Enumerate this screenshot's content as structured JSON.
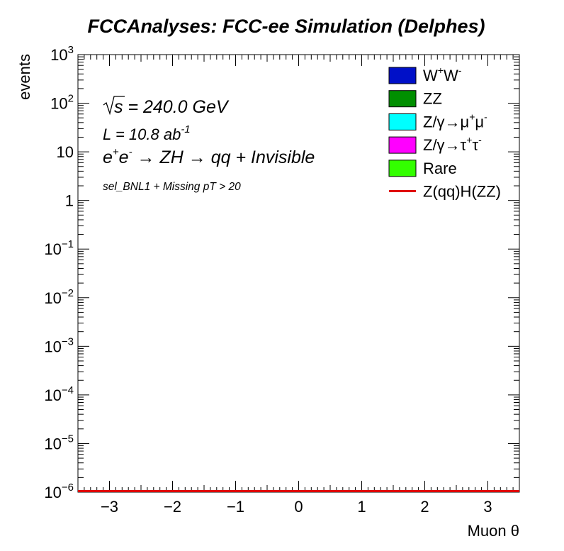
{
  "chart_data": {
    "type": "histogram",
    "title": "FCCAnalyses: FCC-ee Simulation (Delphes)",
    "xlabel": "Muon θ",
    "ylabel": "events",
    "xlim": [
      -3.5,
      3.5
    ],
    "ylim_log10": [
      -6,
      3
    ],
    "log_y": true,
    "x_ticks": [
      "−3",
      "−2",
      "−1",
      "0",
      "1",
      "2",
      "3"
    ],
    "x_tick_values": [
      -3,
      -2,
      -1,
      0,
      1,
      2,
      3
    ],
    "y_ticks": [
      {
        "exp": -6,
        "base": "10",
        "sup": "−6"
      },
      {
        "exp": -5,
        "base": "10",
        "sup": "−5"
      },
      {
        "exp": -4,
        "base": "10",
        "sup": "−4"
      },
      {
        "exp": -3,
        "base": "10",
        "sup": "−3"
      },
      {
        "exp": -2,
        "base": "10",
        "sup": "−2"
      },
      {
        "exp": -1,
        "base": "10",
        "sup": "−1"
      },
      {
        "exp": 0,
        "base": "1",
        "sup": ""
      },
      {
        "exp": 1,
        "base": "10",
        "sup": ""
      },
      {
        "exp": 2,
        "base": "10",
        "sup": "2"
      },
      {
        "exp": 3,
        "base": "10",
        "sup": "3"
      }
    ],
    "annotations": {
      "energy": {
        "sqrt": "s",
        "rest": "= 240.0 GeV"
      },
      "lumi": {
        "main": "L = 10.8 ab",
        "sup": "-1"
      },
      "process": {
        "e1": "e",
        "e1sup": "+",
        "e2": "e",
        "e2sup": "-",
        "arrow1": "→",
        "zh": "ZH",
        "arrow2": "→",
        "final": "qq + Invisible"
      },
      "selection": "sel_BNL1 + Missing pT > 20"
    },
    "legend": {
      "placement": "top-right",
      "entries": [
        {
          "kind": "box",
          "color": "#0010c8",
          "parts": [
            [
              "W",
              ""
            ],
            [
              "+",
              "sup"
            ],
            [
              "W",
              ""
            ],
            [
              "-",
              "sup"
            ]
          ]
        },
        {
          "kind": "box",
          "color": "#008f00",
          "parts": [
            [
              "ZZ",
              ""
            ]
          ]
        },
        {
          "kind": "box",
          "color": "#00ffff",
          "parts": [
            [
              "Z/γ→μ",
              ""
            ],
            [
              "+",
              "sup"
            ],
            [
              "μ",
              ""
            ],
            [
              "-",
              "sup"
            ]
          ]
        },
        {
          "kind": "box",
          "color": "#ff00ff",
          "parts": [
            [
              "Z/γ→τ",
              ""
            ],
            [
              "+",
              "sup"
            ],
            [
              "τ",
              ""
            ],
            [
              "-",
              "sup"
            ]
          ]
        },
        {
          "kind": "box",
          "color": "#33ff00",
          "parts": [
            [
              "Rare",
              ""
            ]
          ]
        },
        {
          "kind": "line",
          "color": "#e00000",
          "parts": [
            [
              "Z(qq)H(ZZ)",
              ""
            ]
          ]
        }
      ]
    },
    "series": [
      {
        "name": "Z(qq)H(ZZ)",
        "color": "#e00000",
        "style": "line",
        "x": [
          -3.5,
          3.5
        ],
        "y": [
          1e-06,
          1e-06
        ]
      }
    ]
  }
}
